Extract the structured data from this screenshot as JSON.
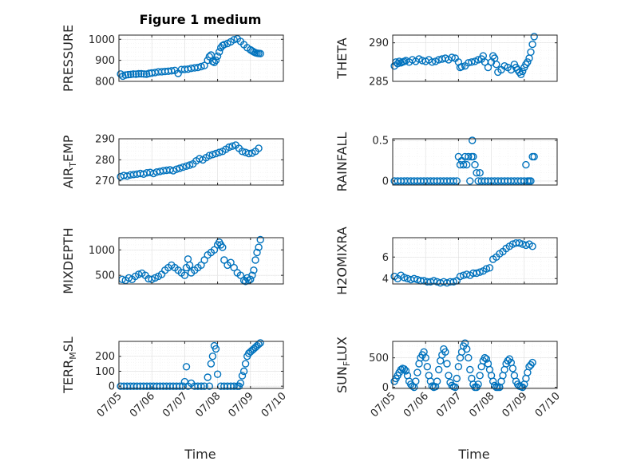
{
  "figure": {
    "title": "Figure 1 medium",
    "marker_color": "#0072BD"
  },
  "chart_data": [
    {
      "type": "scatter",
      "id": "pressure",
      "ylabel": "PRESSURE",
      "title": "Figure 1 medium",
      "ylim": [
        800,
        1020
      ],
      "yticks": [
        800,
        900,
        1000
      ],
      "x": [
        0.05,
        0.12,
        0.2,
        0.28,
        0.36,
        0.44,
        0.52,
        0.6,
        0.68,
        0.76,
        0.84,
        0.92,
        1.0,
        1.1,
        1.2,
        1.3,
        1.4,
        1.5,
        1.6,
        1.7,
        1.8,
        1.9,
        2.0,
        2.1,
        2.2,
        2.3,
        2.4,
        2.5,
        2.6,
        2.7,
        2.75,
        2.8,
        2.85,
        2.9,
        2.95,
        3.0,
        3.05,
        3.1,
        3.15,
        3.2,
        3.3,
        3.4,
        3.5,
        3.6,
        3.7,
        3.8,
        3.9,
        4.0,
        4.05,
        4.1,
        4.15,
        4.2,
        4.25,
        4.3
      ],
      "values": [
        835,
        825,
        830,
        832,
        833,
        835,
        834,
        836,
        836,
        835,
        834,
        838,
        840,
        842,
        845,
        846,
        847,
        848,
        850,
        852,
        838,
        856,
        857,
        858,
        862,
        864,
        866,
        870,
        875,
        900,
        918,
        925,
        895,
        890,
        900,
        920,
        940,
        960,
        970,
        975,
        980,
        988,
        998,
        1002,
        990,
        975,
        960,
        950,
        945,
        940,
        936,
        934,
        933,
        932
      ]
    },
    {
      "type": "scatter",
      "id": "theta",
      "ylabel": "THETA",
      "ylim": [
        285,
        291
      ],
      "yticks": [
        285,
        290
      ],
      "x": [
        0.05,
        0.1,
        0.15,
        0.2,
        0.25,
        0.3,
        0.35,
        0.4,
        0.5,
        0.6,
        0.7,
        0.8,
        0.9,
        1.0,
        1.1,
        1.2,
        1.3,
        1.4,
        1.5,
        1.6,
        1.7,
        1.8,
        1.9,
        2.0,
        2.05,
        2.1,
        2.2,
        2.3,
        2.4,
        2.5,
        2.6,
        2.7,
        2.75,
        2.8,
        2.9,
        3.0,
        3.05,
        3.1,
        3.15,
        3.2,
        3.3,
        3.4,
        3.5,
        3.6,
        3.7,
        3.75,
        3.8,
        3.85,
        3.9,
        3.95,
        4.0,
        4.05,
        4.1,
        4.15,
        4.2,
        4.25,
        4.3
      ],
      "values": [
        287.0,
        287.5,
        287.3,
        287.6,
        287.4,
        287.5,
        287.6,
        287.7,
        287.5,
        287.8,
        287.6,
        287.9,
        287.7,
        287.6,
        287.8,
        287.5,
        287.6,
        287.8,
        287.9,
        288.0,
        287.8,
        288.1,
        288.0,
        287.5,
        286.8,
        286.9,
        287.0,
        287.4,
        287.5,
        287.6,
        287.8,
        287.9,
        288.3,
        287.5,
        286.8,
        287.5,
        288.3,
        288.0,
        287.2,
        286.2,
        286.5,
        287.0,
        286.8,
        286.5,
        287.2,
        286.8,
        286.5,
        286.2,
        285.9,
        286.3,
        286.8,
        287.2,
        287.5,
        288.0,
        288.8,
        289.8,
        290.8
      ]
    },
    {
      "type": "scatter",
      "id": "air_temp",
      "ylabel": "AIR_TEMP",
      "ylim": [
        268,
        290
      ],
      "yticks": [
        270,
        280,
        290
      ],
      "x": [
        0.05,
        0.15,
        0.25,
        0.35,
        0.45,
        0.55,
        0.65,
        0.75,
        0.85,
        0.95,
        1.05,
        1.15,
        1.25,
        1.35,
        1.45,
        1.55,
        1.65,
        1.75,
        1.85,
        1.95,
        2.05,
        2.15,
        2.25,
        2.35,
        2.45,
        2.55,
        2.65,
        2.75,
        2.85,
        2.95,
        3.05,
        3.15,
        3.25,
        3.35,
        3.45,
        3.55,
        3.65,
        3.75,
        3.85,
        3.95,
        4.05,
        4.15,
        4.25
      ],
      "values": [
        272.0,
        272.5,
        272.3,
        272.8,
        273.0,
        273.2,
        273.5,
        273.2,
        273.8,
        274.0,
        273.5,
        274.2,
        274.5,
        274.8,
        275.0,
        275.2,
        274.8,
        275.5,
        276.0,
        276.5,
        277.0,
        277.5,
        278.0,
        279.5,
        280.5,
        280.0,
        281.0,
        282.0,
        282.5,
        283.0,
        283.5,
        284.0,
        285.0,
        286.0,
        286.5,
        287.0,
        285.5,
        284.0,
        283.5,
        283.0,
        283.2,
        284.0,
        285.5
      ]
    },
    {
      "type": "scatter",
      "id": "rainfall",
      "ylabel": "RAINFALL",
      "ylim": [
        -0.05,
        0.52
      ],
      "yticks": [
        0,
        0.5
      ],
      "x": [
        0.05,
        0.15,
        0.25,
        0.35,
        0.45,
        0.55,
        0.65,
        0.75,
        0.85,
        0.95,
        1.05,
        1.15,
        1.25,
        1.35,
        1.45,
        1.55,
        1.65,
        1.75,
        1.85,
        1.95,
        2.0,
        2.05,
        2.1,
        2.15,
        2.2,
        2.25,
        2.3,
        2.35,
        2.4,
        2.42,
        2.45,
        2.5,
        2.55,
        2.6,
        2.65,
        2.7,
        2.8,
        2.9,
        3.0,
        3.1,
        3.2,
        3.3,
        3.4,
        3.5,
        3.6,
        3.7,
        3.8,
        3.9,
        4.0,
        4.05,
        4.1,
        4.15,
        4.2,
        4.25,
        4.3
      ],
      "values": [
        0,
        0,
        0,
        0,
        0,
        0,
        0,
        0,
        0,
        0,
        0,
        0,
        0,
        0,
        0,
        0,
        0,
        0,
        0,
        0,
        0.3,
        0.2,
        0.25,
        0.2,
        0.3,
        0.2,
        0.3,
        0,
        0.3,
        0.5,
        0.3,
        0.2,
        0.1,
        0,
        0.1,
        0,
        0,
        0,
        0,
        0,
        0,
        0,
        0,
        0,
        0,
        0,
        0,
        0,
        0,
        0.2,
        0,
        0,
        0,
        0.3,
        0.3
      ]
    },
    {
      "type": "scatter",
      "id": "mixdepth",
      "ylabel": "MIXDEPTH",
      "ylim": [
        330,
        1240
      ],
      "yticks": [
        500,
        1000
      ],
      "x": [
        0.1,
        0.2,
        0.3,
        0.4,
        0.5,
        0.6,
        0.7,
        0.8,
        0.9,
        1.0,
        1.1,
        1.2,
        1.3,
        1.4,
        1.5,
        1.6,
        1.7,
        1.8,
        1.9,
        2.0,
        2.05,
        2.1,
        2.15,
        2.2,
        2.3,
        2.4,
        2.5,
        2.6,
        2.7,
        2.8,
        2.9,
        3.0,
        3.05,
        3.1,
        3.15,
        3.2,
        3.3,
        3.4,
        3.5,
        3.6,
        3.7,
        3.8,
        3.85,
        3.9,
        3.95,
        4.0,
        4.05,
        4.1,
        4.15,
        4.2,
        4.25,
        4.3
      ],
      "values": [
        420,
        400,
        450,
        420,
        480,
        520,
        540,
        500,
        430,
        420,
        450,
        480,
        520,
        600,
        650,
        700,
        650,
        600,
        550,
        500,
        650,
        820,
        700,
        550,
        600,
        650,
        700,
        800,
        900,
        950,
        1000,
        1100,
        1150,
        1100,
        1050,
        800,
        700,
        750,
        650,
        550,
        500,
        400,
        380,
        450,
        400,
        420,
        500,
        600,
        800,
        950,
        1050,
        1200
      ]
    },
    {
      "type": "scatter",
      "id": "h2omixra",
      "ylabel": "H2OMIXRA",
      "ylim": [
        3.5,
        7.8
      ],
      "yticks": [
        4,
        6
      ],
      "x": [
        0.05,
        0.15,
        0.25,
        0.35,
        0.45,
        0.55,
        0.65,
        0.75,
        0.85,
        0.95,
        1.05,
        1.15,
        1.25,
        1.35,
        1.45,
        1.55,
        1.65,
        1.75,
        1.85,
        1.95,
        2.05,
        2.15,
        2.25,
        2.35,
        2.45,
        2.55,
        2.65,
        2.75,
        2.85,
        2.95,
        3.05,
        3.15,
        3.25,
        3.35,
        3.45,
        3.55,
        3.65,
        3.75,
        3.85,
        3.95,
        4.05,
        4.15,
        4.25
      ],
      "values": [
        4.2,
        4.0,
        4.3,
        4.1,
        4.0,
        3.9,
        4.0,
        3.9,
        3.8,
        3.8,
        3.7,
        3.7,
        3.8,
        3.7,
        3.6,
        3.7,
        3.6,
        3.7,
        3.7,
        3.8,
        4.2,
        4.3,
        4.4,
        4.3,
        4.5,
        4.5,
        4.6,
        4.7,
        4.9,
        5.0,
        5.8,
        6.0,
        6.3,
        6.5,
        6.8,
        7.0,
        7.2,
        7.3,
        7.3,
        7.2,
        7.1,
        7.2,
        7.0
      ]
    },
    {
      "type": "scatter",
      "id": "terr_msl",
      "ylabel": "TERR_MSL",
      "ylim": [
        -15,
        300
      ],
      "yticks": [
        0,
        100,
        200
      ],
      "x": [
        0.05,
        0.15,
        0.25,
        0.35,
        0.45,
        0.55,
        0.65,
        0.75,
        0.85,
        0.95,
        1.05,
        1.15,
        1.25,
        1.35,
        1.45,
        1.55,
        1.65,
        1.75,
        1.85,
        1.95,
        2.0,
        2.05,
        2.1,
        2.2,
        2.3,
        2.4,
        2.5,
        2.6,
        2.7,
        2.75,
        2.8,
        2.85,
        2.9,
        2.95,
        3.0,
        3.1,
        3.2,
        3.3,
        3.4,
        3.5,
        3.6,
        3.65,
        3.7,
        3.75,
        3.8,
        3.85,
        3.9,
        3.95,
        4.0,
        4.05,
        4.1,
        4.15,
        4.2,
        4.25,
        4.3
      ],
      "values": [
        0,
        0,
        0,
        0,
        0,
        0,
        0,
        0,
        0,
        0,
        0,
        0,
        0,
        0,
        0,
        0,
        0,
        0,
        0,
        0,
        30,
        130,
        0,
        20,
        0,
        0,
        0,
        0,
        60,
        0,
        150,
        200,
        270,
        250,
        80,
        0,
        0,
        0,
        0,
        0,
        0,
        0,
        20,
        70,
        100,
        150,
        200,
        220,
        230,
        240,
        250,
        260,
        270,
        280,
        290
      ]
    },
    {
      "type": "scatter",
      "id": "sun_flux",
      "ylabel": "SUN_FLUX",
      "ylim": [
        -20,
        780
      ],
      "yticks": [
        0,
        500
      ],
      "x": [
        0.05,
        0.1,
        0.15,
        0.2,
        0.25,
        0.3,
        0.35,
        0.4,
        0.45,
        0.5,
        0.55,
        0.6,
        0.65,
        0.7,
        0.75,
        0.8,
        0.85,
        0.9,
        0.95,
        1.0,
        1.05,
        1.1,
        1.15,
        1.2,
        1.25,
        1.3,
        1.35,
        1.4,
        1.45,
        1.5,
        1.55,
        1.6,
        1.65,
        1.7,
        1.75,
        1.8,
        1.85,
        1.9,
        1.95,
        2.0,
        2.05,
        2.1,
        2.15,
        2.2,
        2.25,
        2.3,
        2.35,
        2.4,
        2.45,
        2.5,
        2.55,
        2.6,
        2.65,
        2.7,
        2.75,
        2.8,
        2.85,
        2.9,
        2.95,
        3.0,
        3.05,
        3.1,
        3.15,
        3.2,
        3.25,
        3.3,
        3.35,
        3.4,
        3.45,
        3.5,
        3.55,
        3.6,
        3.65,
        3.7,
        3.75,
        3.8,
        3.85,
        3.9,
        3.95,
        4.0,
        4.05,
        4.1,
        4.15,
        4.2,
        4.25
      ],
      "values": [
        100,
        150,
        200,
        250,
        300,
        320,
        310,
        280,
        200,
        100,
        50,
        20,
        0,
        100,
        250,
        400,
        500,
        550,
        600,
        500,
        350,
        200,
        100,
        20,
        0,
        10,
        100,
        300,
        450,
        550,
        650,
        600,
        400,
        200,
        80,
        30,
        10,
        0,
        150,
        350,
        500,
        600,
        700,
        750,
        650,
        500,
        300,
        150,
        50,
        0,
        0,
        50,
        200,
        350,
        450,
        500,
        480,
        400,
        300,
        200,
        100,
        30,
        0,
        0,
        0,
        100,
        200,
        300,
        400,
        450,
        480,
        420,
        320,
        200,
        100,
        50,
        20,
        10,
        0,
        50,
        150,
        250,
        350,
        380,
        420
      ]
    }
  ],
  "shared_x": {
    "label": "Time",
    "tick_labels": [
      "07/05",
      "07/06",
      "07/07",
      "07/08",
      "07/09",
      "07/10"
    ],
    "range": [
      0,
      5
    ]
  }
}
